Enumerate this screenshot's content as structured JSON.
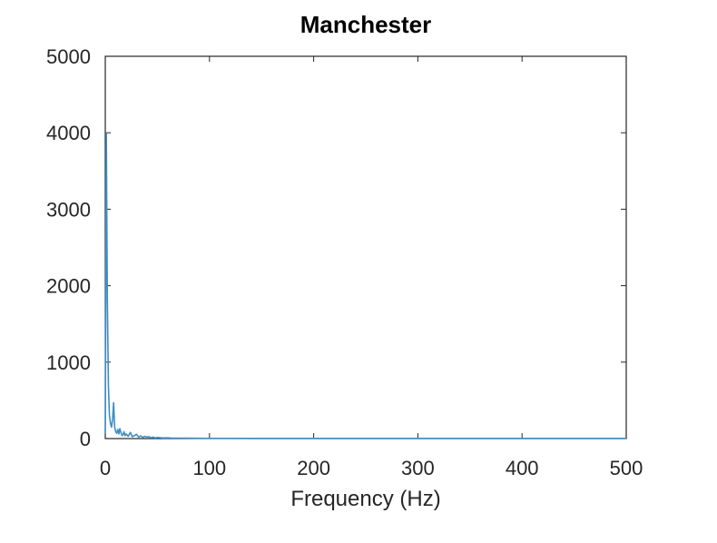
{
  "chart_data": {
    "type": "line",
    "title": "Manchester",
    "xlabel": "Frequency (Hz)",
    "ylabel": "",
    "xlim": [
      0,
      500
    ],
    "ylim": [
      0,
      5000
    ],
    "xticks": [
      0,
      100,
      200,
      300,
      400,
      500
    ],
    "yticks": [
      0,
      1000,
      2000,
      3000,
      4000,
      5000
    ],
    "xtick_labels": [
      "0",
      "100",
      "200",
      "300",
      "400",
      "500"
    ],
    "ytick_labels": [
      "0",
      "1000",
      "2000",
      "3000",
      "4000",
      "5000"
    ],
    "grid": false,
    "legend": "none",
    "series": [
      {
        "color": "#3e8ec4",
        "x": [
          0,
          1,
          2,
          3,
          4,
          5,
          6,
          7,
          8,
          9,
          10,
          11,
          12,
          13,
          14,
          15,
          16,
          17,
          18,
          19,
          20,
          22,
          24,
          26,
          28,
          30,
          32,
          34,
          36,
          38,
          40,
          42,
          44,
          46,
          48,
          50,
          55,
          60,
          65,
          70,
          80,
          90,
          100,
          120,
          150,
          200,
          250,
          300,
          350,
          400,
          450,
          500
        ],
        "y": [
          60,
          4000,
          1800,
          700,
          300,
          200,
          150,
          250,
          470,
          150,
          90,
          70,
          120,
          60,
          130,
          80,
          40,
          50,
          90,
          40,
          60,
          30,
          80,
          25,
          40,
          55,
          20,
          35,
          15,
          30,
          20,
          25,
          10,
          20,
          8,
          15,
          8,
          10,
          6,
          6,
          5,
          4,
          3,
          3,
          2,
          2,
          2,
          2,
          2,
          2,
          2,
          2
        ]
      }
    ]
  }
}
